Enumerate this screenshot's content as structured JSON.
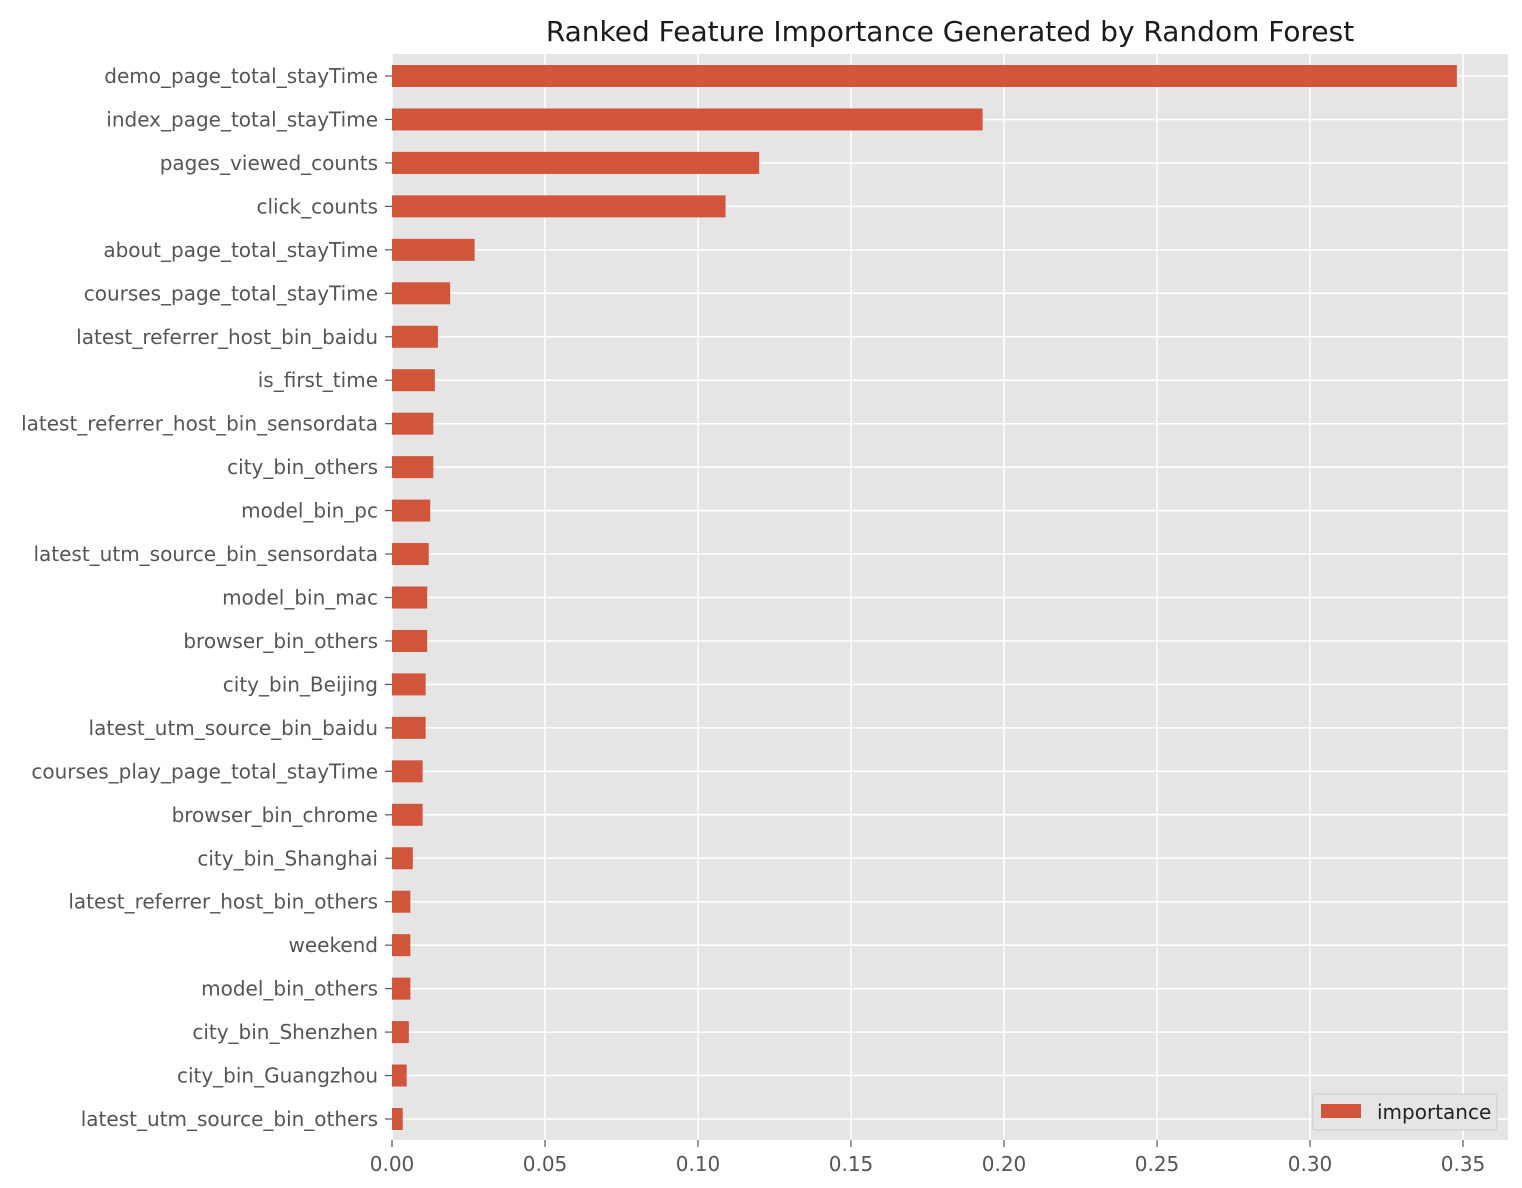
{
  "chart_data": {
    "type": "bar",
    "orientation": "horizontal",
    "title": "Ranked Feature Importance Generated by Random Forest",
    "xlabel": "",
    "ylabel": "",
    "xlim": [
      0,
      0.365
    ],
    "xticks": [
      "0.00",
      "0.05",
      "0.10",
      "0.15",
      "0.20",
      "0.25",
      "0.30",
      "0.35"
    ],
    "grid": true,
    "legend_position": "lower-right",
    "categories": [
      "demo_page_total_stayTime",
      "index_page_total_stayTime",
      "pages_viewed_counts",
      "click_counts",
      "about_page_total_stayTime",
      "courses_page_total_stayTime",
      "latest_referrer_host_bin_baidu",
      "is_first_time",
      "latest_referrer_host_bin_sensordata",
      "city_bin_others",
      "model_bin_pc",
      "latest_utm_source_bin_sensordata",
      "model_bin_mac",
      "browser_bin_others",
      "city_bin_Beijing",
      "latest_utm_source_bin_baidu",
      "courses_play_page_total_stayTime",
      "browser_bin_chrome",
      "city_bin_Shanghai",
      "latest_referrer_host_bin_others",
      "weekend",
      "model_bin_others",
      "city_bin_Shenzhen",
      "city_bin_Guangzhou",
      "latest_utm_source_bin_others"
    ],
    "series": [
      {
        "name": "importance",
        "color": "#d1553b",
        "values": [
          0.348,
          0.193,
          0.12,
          0.109,
          0.027,
          0.019,
          0.015,
          0.014,
          0.0135,
          0.0135,
          0.0125,
          0.012,
          0.0115,
          0.0115,
          0.011,
          0.011,
          0.01,
          0.01,
          0.0068,
          0.006,
          0.006,
          0.006,
          0.0055,
          0.0048,
          0.0035
        ]
      }
    ]
  }
}
